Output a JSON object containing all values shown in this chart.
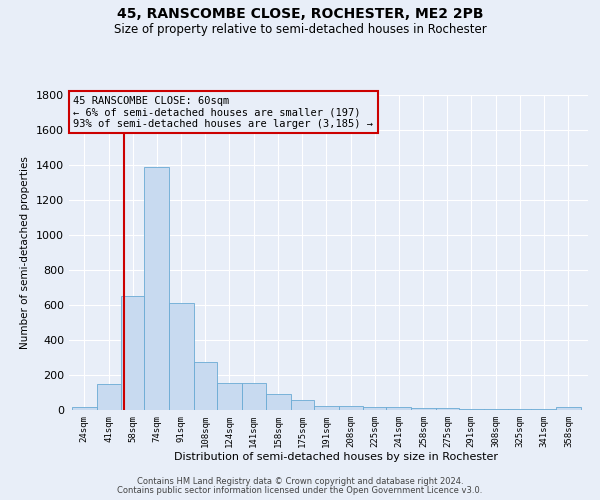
{
  "title": "45, RANSCOMBE CLOSE, ROCHESTER, ME2 2PB",
  "subtitle": "Size of property relative to semi-detached houses in Rochester",
  "xlabel": "Distribution of semi-detached houses by size in Rochester",
  "ylabel": "Number of semi-detached properties",
  "footer1": "Contains HM Land Registry data © Crown copyright and database right 2024.",
  "footer2": "Contains public sector information licensed under the Open Government Licence v3.0.",
  "annotation_title": "45 RANSCOMBE CLOSE: 60sqm",
  "annotation_line1": "← 6% of semi-detached houses are smaller (197)",
  "annotation_line2": "93% of semi-detached houses are larger (3,185) →",
  "property_size": 60,
  "categories": [
    "24sqm",
    "41sqm",
    "58sqm",
    "74sqm",
    "91sqm",
    "108sqm",
    "124sqm",
    "141sqm",
    "158sqm",
    "175sqm",
    "191sqm",
    "208sqm",
    "225sqm",
    "241sqm",
    "258sqm",
    "275sqm",
    "291sqm",
    "308sqm",
    "325sqm",
    "341sqm",
    "358sqm"
  ],
  "bin_edges": [
    24,
    41,
    58,
    74,
    91,
    108,
    124,
    141,
    158,
    175,
    191,
    208,
    225,
    241,
    258,
    275,
    291,
    308,
    325,
    341,
    358,
    375
  ],
  "values": [
    20,
    150,
    650,
    1390,
    610,
    275,
    155,
    155,
    90,
    55,
    25,
    25,
    18,
    15,
    12,
    10,
    8,
    8,
    5,
    5,
    15
  ],
  "bar_color": "#c8daf0",
  "bar_edge_color": "#6aaad4",
  "property_line_color": "#cc0000",
  "annotation_box_edge_color": "#cc0000",
  "background_color": "#e8eef8",
  "grid_color": "#ffffff",
  "ylim": [
    0,
    1800
  ],
  "yticks": [
    0,
    200,
    400,
    600,
    800,
    1000,
    1200,
    1400,
    1600,
    1800
  ]
}
